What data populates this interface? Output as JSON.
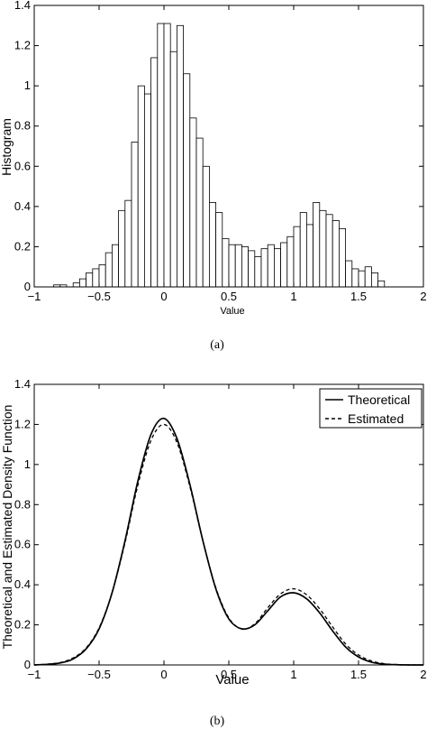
{
  "captions": [
    "(a)",
    "(b)"
  ],
  "chart_data": [
    {
      "type": "bar",
      "title": "",
      "xlabel": "Value",
      "ylabel": "Histogram",
      "xlim": [
        -1,
        2
      ],
      "ylim": [
        0,
        1.4
      ],
      "grid": false,
      "x_ticks": [
        "−1",
        "−0.5",
        "0",
        "0.5",
        "1",
        "1.5",
        "2"
      ],
      "y_ticks": [
        "0",
        "0.2",
        "0.4",
        "0.6",
        "0.8",
        "1",
        "1.2",
        "1.4"
      ],
      "bin_width": 0.05,
      "bin_start": -0.85,
      "values": [
        0.01,
        0.01,
        0.0,
        0.02,
        0.04,
        0.07,
        0.09,
        0.11,
        0.17,
        0.21,
        0.38,
        0.43,
        0.72,
        1.0,
        0.96,
        1.14,
        1.31,
        1.31,
        1.17,
        1.3,
        1.06,
        0.84,
        0.74,
        0.6,
        0.42,
        0.37,
        0.24,
        0.21,
        0.21,
        0.2,
        0.18,
        0.15,
        0.19,
        0.21,
        0.19,
        0.22,
        0.25,
        0.3,
        0.37,
        0.31,
        0.42,
        0.38,
        0.36,
        0.33,
        0.29,
        0.13,
        0.09,
        0.08,
        0.1,
        0.07,
        0.03,
        0.0
      ]
    },
    {
      "type": "line",
      "title": "",
      "xlabel": "Value",
      "ylabel": "Theoretical and Estimated Density Function",
      "xlim": [
        -1,
        2
      ],
      "ylim": [
        0,
        1.4
      ],
      "grid": false,
      "legend_position": "top-right",
      "x_ticks": [
        "−1",
        "−0.5",
        "0",
        "0.5",
        "1",
        "1.5",
        "2"
      ],
      "y_ticks": [
        "0",
        "0.2",
        "0.4",
        "0.6",
        "0.8",
        "1",
        "1.2",
        "1.4"
      ],
      "x": [
        -1.0,
        -0.9,
        -0.8,
        -0.7,
        -0.6,
        -0.5,
        -0.4,
        -0.3,
        -0.2,
        -0.1,
        0.0,
        0.1,
        0.2,
        0.3,
        0.4,
        0.5,
        0.6,
        0.7,
        0.8,
        0.9,
        1.0,
        1.1,
        1.2,
        1.3,
        1.4,
        1.5,
        1.6,
        1.7,
        1.8,
        1.9,
        2.0
      ],
      "series": [
        {
          "name": "Theoretical",
          "style": "solid",
          "values": [
            0.0,
            0.003,
            0.01,
            0.03,
            0.08,
            0.18,
            0.36,
            0.62,
            0.92,
            1.15,
            1.23,
            1.13,
            0.9,
            0.62,
            0.38,
            0.23,
            0.18,
            0.2,
            0.27,
            0.34,
            0.36,
            0.33,
            0.26,
            0.17,
            0.09,
            0.04,
            0.014,
            0.004,
            0.001,
            0.0,
            0.0
          ]
        },
        {
          "name": "Estimated",
          "style": "dashed",
          "values": [
            0.0,
            0.004,
            0.012,
            0.035,
            0.085,
            0.185,
            0.36,
            0.61,
            0.9,
            1.12,
            1.2,
            1.11,
            0.89,
            0.62,
            0.385,
            0.235,
            0.18,
            0.205,
            0.285,
            0.355,
            0.38,
            0.35,
            0.28,
            0.19,
            0.105,
            0.05,
            0.02,
            0.006,
            0.002,
            0.0,
            0.0
          ]
        }
      ]
    }
  ]
}
